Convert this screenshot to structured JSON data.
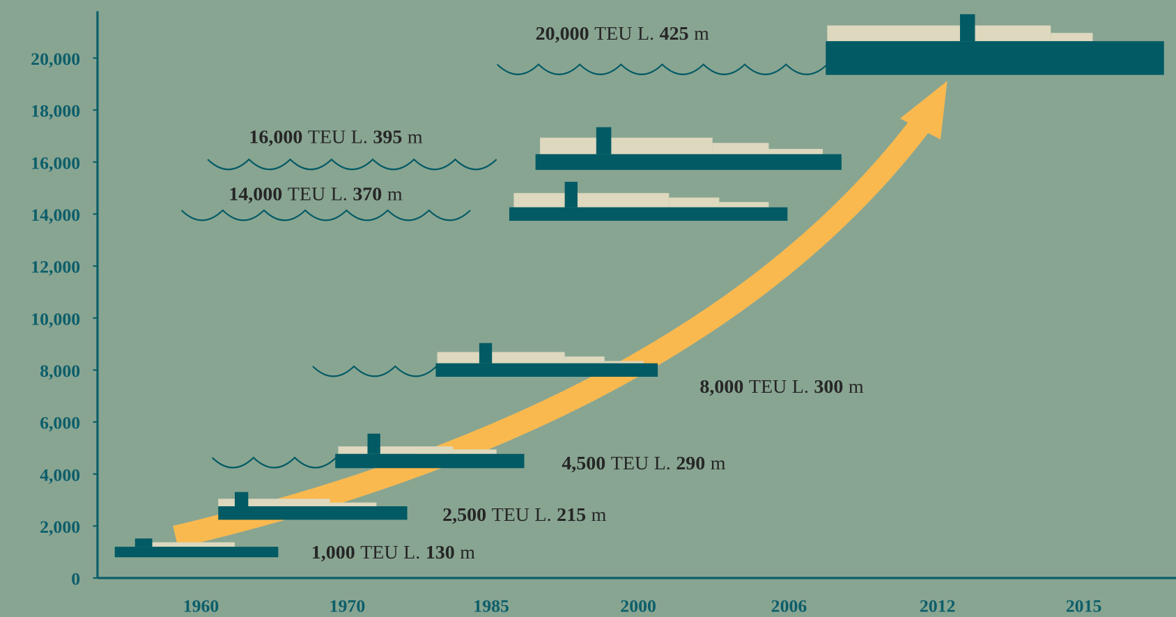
{
  "chart_data": {
    "type": "ship-growth",
    "categories": [
      "1960",
      "1970",
      "1985",
      "2000",
      "2006",
      "2012",
      "2015"
    ],
    "values": [
      1000,
      2500,
      4500,
      8000,
      14000,
      16000,
      20000
    ],
    "value_labels": [
      "1,000",
      "2,500",
      "4,500",
      "8,000",
      "14,000",
      "16,000",
      "20,000"
    ],
    "lengths": [
      130,
      215,
      290,
      300,
      370,
      395,
      425
    ],
    "unit": "TEU",
    "length_prefix": "L.",
    "length_unit": "m",
    "ylim": [
      0,
      21800
    ],
    "yticks": [
      0,
      {
        "value": 2000,
        "label": "2,000"
      },
      {
        "value": 4000,
        "label": "4,000"
      },
      {
        "value": 6000,
        "label": "6,000"
      },
      {
        "value": 8000,
        "label": "8,000"
      },
      {
        "value": 10000,
        "label": "10,000"
      },
      {
        "value": 12000,
        "label": "12,000"
      },
      {
        "value": 14000,
        "label": "14,000"
      },
      {
        "value": 16000,
        "label": "16,000"
      },
      {
        "value": 18000,
        "label": "18,000"
      },
      {
        "value": 20000,
        "label": "20,000"
      }
    ],
    "colors": {
      "hull": "#025a64",
      "deck": "#ddd8be",
      "arrow": "#f9b94f",
      "axis": "#0d5e6a"
    }
  }
}
